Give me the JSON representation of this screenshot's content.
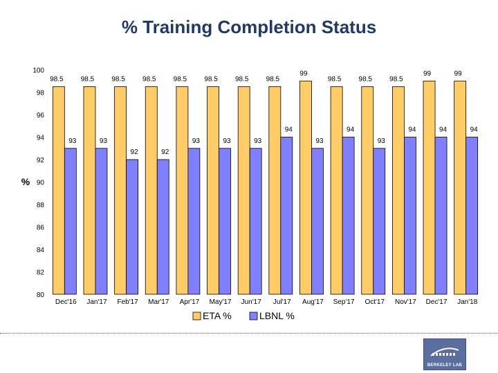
{
  "chart_data": {
    "type": "bar",
    "title": "% Training Completion Status",
    "ylabel": "%",
    "xlabel": "",
    "ylim": [
      80,
      100
    ],
    "yticks": [
      80,
      82,
      84,
      86,
      88,
      90,
      92,
      94,
      96,
      98,
      100
    ],
    "categories": [
      "Dec'16",
      "Jan'17",
      "Feb'17",
      "Mar'17",
      "Apr'17",
      "May'17",
      "Jun'17",
      "Jul'17",
      "Aug'17",
      "Sep'17",
      "Oct'17",
      "Nov'17",
      "Dec'17",
      "Jan'18"
    ],
    "series": [
      {
        "name": "ETA %",
        "color": "#ffcc66",
        "values": [
          98.5,
          98.5,
          98.5,
          98.5,
          98.5,
          98.5,
          98.5,
          98.5,
          99,
          98.5,
          98.5,
          98.5,
          99,
          99
        ]
      },
      {
        "name": "LBNL %",
        "color": "#8080ff",
        "values": [
          93,
          93,
          92,
          92,
          93,
          93,
          93,
          94,
          93,
          94,
          93,
          94,
          94,
          94
        ]
      }
    ],
    "legend_position": "bottom",
    "grid": false
  },
  "logo": {
    "text": "BERKELEY LAB"
  }
}
